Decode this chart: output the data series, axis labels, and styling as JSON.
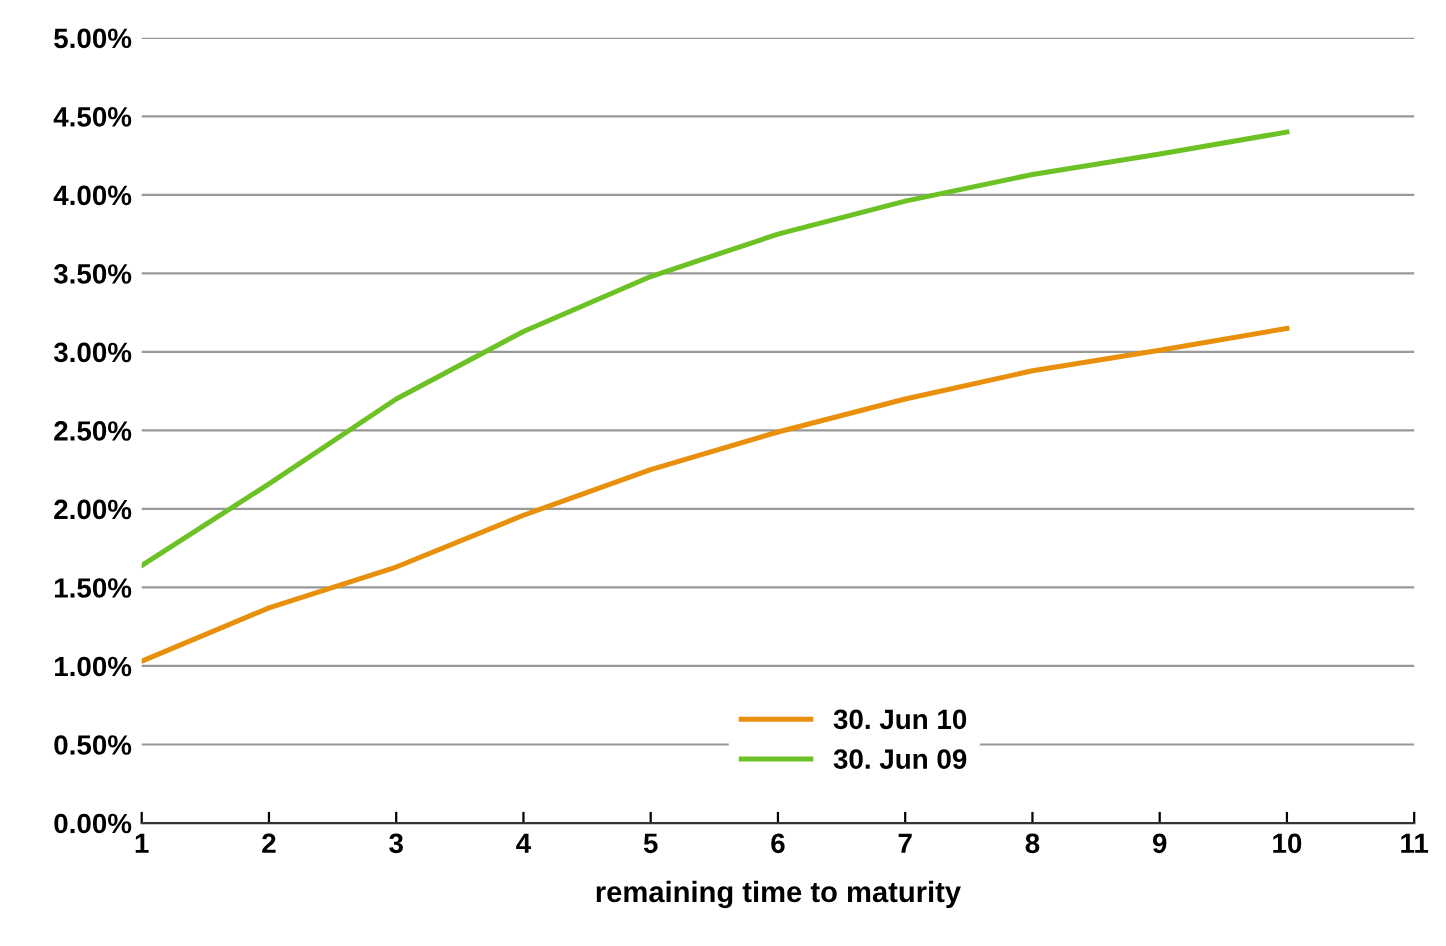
{
  "chart_data": {
    "type": "line",
    "xlabel": "remaining time to maturity",
    "x": [
      1,
      2,
      3,
      4,
      5,
      6,
      7,
      8,
      9,
      10
    ],
    "series": [
      {
        "name": "30. Jun 10",
        "color": "#e8900c",
        "values": [
          1.03,
          1.37,
          1.63,
          1.96,
          2.25,
          2.49,
          2.7,
          2.88,
          3.01,
          3.15
        ]
      },
      {
        "name": "30. Jun 09",
        "color": "#6cc224",
        "values": [
          1.64,
          2.16,
          2.7,
          3.13,
          3.48,
          3.75,
          3.96,
          4.13,
          4.26,
          4.4
        ]
      }
    ],
    "xlim": [
      1,
      11
    ],
    "xticks": [
      1,
      2,
      3,
      4,
      5,
      6,
      7,
      8,
      9,
      10,
      11
    ],
    "ylim": [
      0,
      5
    ],
    "yticks": [
      {
        "value": 0,
        "label": "0.00%"
      },
      {
        "value": 0.5,
        "label": "0.50%"
      },
      {
        "value": 1,
        "label": "1.00%"
      },
      {
        "value": 1.5,
        "label": "1.50%"
      },
      {
        "value": 2,
        "label": "2.00%"
      },
      {
        "value": 2.5,
        "label": "2.50%"
      },
      {
        "value": 3,
        "label": "3.00%"
      },
      {
        "value": 3.5,
        "label": "3.50%"
      },
      {
        "value": 4,
        "label": "4.00%"
      },
      {
        "value": 4.5,
        "label": "4.50%"
      },
      {
        "value": 5,
        "label": "5.00%"
      }
    ],
    "grid": "y",
    "legend": "bottom",
    "marker": "none",
    "line_style": "solid"
  }
}
